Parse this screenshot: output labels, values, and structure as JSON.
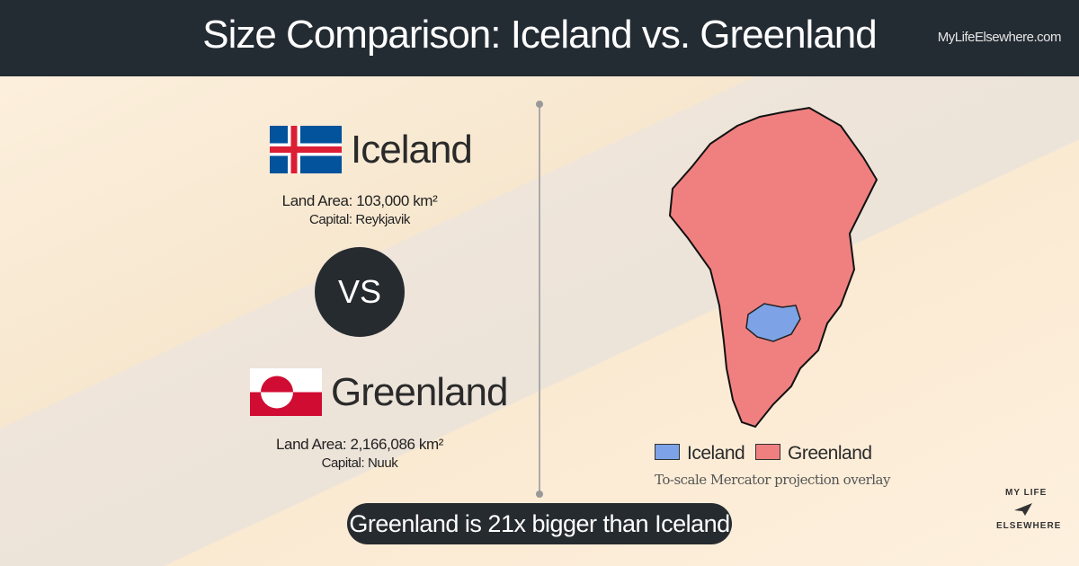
{
  "header": {
    "title": "Size Comparison: Iceland vs. Greenland",
    "site": "MyLifeElsewhere.com"
  },
  "countries": [
    {
      "name": "Iceland",
      "land_area": "Land Area: 103,000 km²",
      "capital": "Capital: Reykjavik"
    },
    {
      "name": "Greenland",
      "land_area": "Land Area: 2,166,086 km²",
      "capital": "Capital: Nuuk"
    }
  ],
  "vs": "VS",
  "legend": [
    "Iceland",
    "Greenland"
  ],
  "note": "To-scale Mercator projection overlay",
  "summary": "Greenland is 21x bigger than Iceland",
  "logo": [
    "MY LIFE",
    "ELSEWHERE"
  ]
}
